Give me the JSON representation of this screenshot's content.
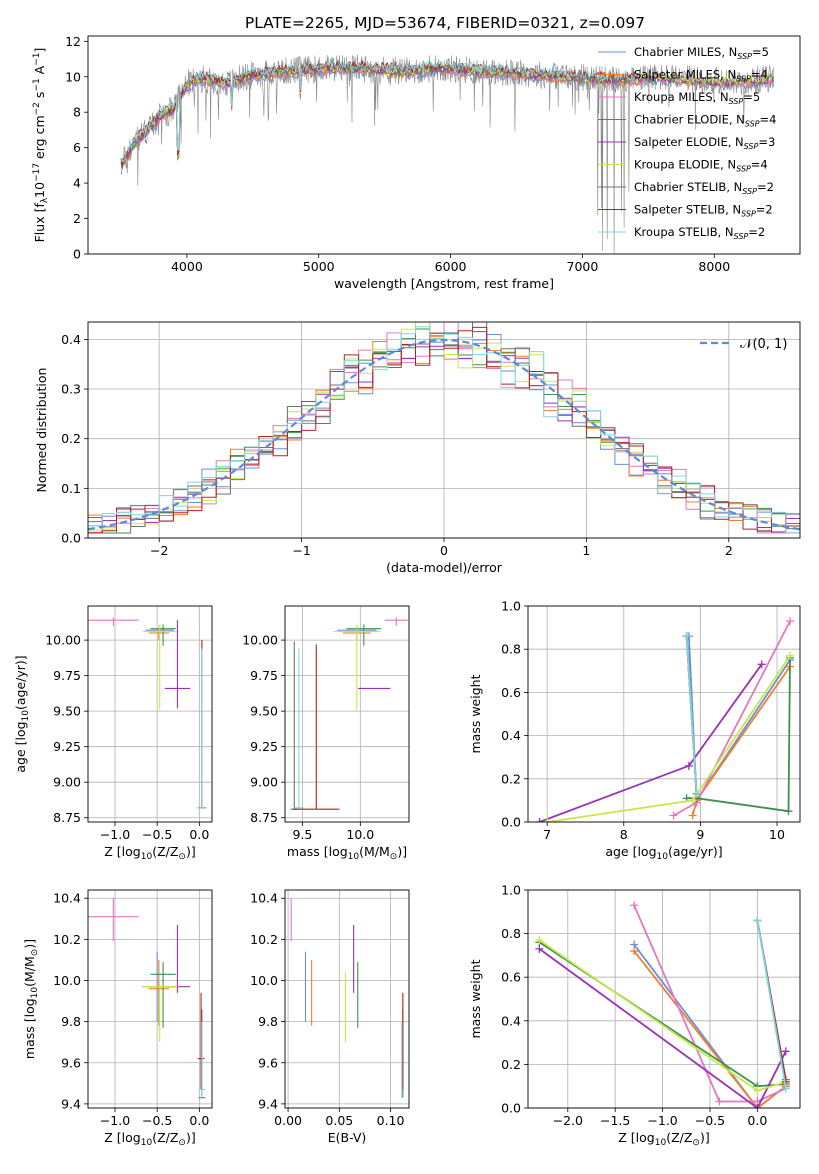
{
  "title": "PLATE=2265, MJD=53674, FIBERID=0321, z=0.097",
  "colors": {
    "chabrier_miles": "#6a8fdb",
    "salpeter_miles": "#ef7f2a",
    "kroupa_miles": "#e377c2",
    "chabrier_elodie": "#3f8f4f",
    "salpeter_elodie": "#9a32b8",
    "kroupa_elodie": "#c6e84a",
    "chabrier_stelib": "#707070",
    "salpeter_stelib": "#b22222",
    "kroupa_stelib": "#7fd6e0",
    "spectrum": "#888888",
    "normal_curve": "#5b8bdb",
    "grid": "#b0b0b0"
  },
  "chart_data": [
    {
      "id": "spectrum",
      "type": "line",
      "title": "PLATE=2265, MJD=53674, FIBERID=0321, z=0.097",
      "xlabel": "wavelength [Angstrom, rest frame]",
      "ylabel": "Flux [f_λ 10^-17 erg cm^-2 s^-1 A^-1]",
      "xlim": [
        3250,
        8650
      ],
      "ylim": [
        0,
        12.3
      ],
      "xticks": [
        "4000",
        "5000",
        "6000",
        "7000",
        "8000"
      ],
      "yticks": [
        "0",
        "2",
        "4",
        "6",
        "8",
        "10",
        "12"
      ],
      "legend_loc": "upper right",
      "observed": {
        "x": [
          3500,
          3550,
          3600,
          3700,
          3800,
          3900,
          4000,
          4100,
          4200,
          4300,
          4400,
          4500,
          4700,
          4900,
          5100,
          5300,
          5500,
          5700,
          5900,
          6100,
          6300,
          6500,
          6700,
          6900,
          7100,
          7300,
          7500,
          7700,
          7900,
          8100,
          8300,
          8450
        ],
        "y": [
          5.0,
          5.6,
          6.3,
          7.0,
          7.8,
          8.2,
          9.6,
          9.9,
          9.8,
          9.6,
          9.9,
          10.1,
          10.3,
          10.4,
          10.5,
          10.5,
          10.4,
          10.3,
          10.5,
          10.4,
          10.3,
          10.2,
          10.1,
          10.0,
          9.9,
          9.8,
          10.0,
          9.9,
          9.8,
          9.7,
          9.8,
          9.9
        ]
      },
      "series": [
        {
          "name": "Chabrier MILES, N_SSP=5",
          "color": "#6a8fdb"
        },
        {
          "name": "Salpeter MILES, N_SSP=4",
          "color": "#ef7f2a"
        },
        {
          "name": "Kroupa MILES, N_SSP=5",
          "color": "#e377c2"
        },
        {
          "name": "Chabrier ELODIE, N_SSP=4",
          "color": "#3f8f4f"
        },
        {
          "name": "Salpeter ELODIE, N_SSP=3",
          "color": "#9a32b8"
        },
        {
          "name": "Kroupa ELODIE, N_SSP=4",
          "color": "#c6e84a"
        },
        {
          "name": "Chabrier STELIB, N_SSP=2",
          "color": "#707070"
        },
        {
          "name": "Salpeter STELIB, N_SSP=2",
          "color": "#b22222"
        },
        {
          "name": "Kroupa STELIB, N_SSP=2",
          "color": "#7fd6e0"
        }
      ],
      "legend": [
        {
          "pre": "Chabrier MILES, N",
          "sub": "SSP",
          "post": "=5",
          "color": "#6a8fdb"
        },
        {
          "pre": "Salpeter MILES, N",
          "sub": "SSP",
          "post": "=4",
          "color": "#ef7f2a"
        },
        {
          "pre": "Kroupa MILES, N",
          "sub": "SSP",
          "post": "=5",
          "color": "#e377c2"
        },
        {
          "pre": "Chabrier ELODIE, N",
          "sub": "SSP",
          "post": "=4",
          "color": "#3f8f4f"
        },
        {
          "pre": "Salpeter ELODIE, N",
          "sub": "SSP",
          "post": "=3",
          "color": "#9a32b8"
        },
        {
          "pre": "Kroupa ELODIE, N",
          "sub": "SSP",
          "post": "=4",
          "color": "#c6e84a"
        },
        {
          "pre": "Chabrier STELIB, N",
          "sub": "SSP",
          "post": "=2",
          "color": "#707070"
        },
        {
          "pre": "Salpeter STELIB, N",
          "sub": "SSP",
          "post": "=2",
          "color": "#b22222"
        },
        {
          "pre": "Kroupa STELIB, N",
          "sub": "SSP",
          "post": "=2",
          "color": "#7fd6e0"
        }
      ]
    },
    {
      "id": "residuals",
      "type": "line",
      "xlabel": "(data-model)/error",
      "ylabel": "Normed distribution",
      "xlim": [
        -2.5,
        2.5
      ],
      "ylim": [
        0,
        0.435
      ],
      "xticks": [
        "−2",
        "−1",
        "0",
        "1",
        "2"
      ],
      "yticks": [
        "0.0",
        "0.1",
        "0.2",
        "0.3",
        "0.4"
      ],
      "legend": "𝒩(0, 1)",
      "legend_loc": "upper right",
      "bin_width": 0.1
    },
    {
      "id": "age_vs_Z",
      "type": "scatter",
      "xlabel_pre": "Z [log",
      "xlabel_sub": "10",
      "xlabel_post": "(Z/Z",
      "xlabel_sun": "⊙",
      "xlabel_end": ")]",
      "ylabel_pre": "age  [log",
      "ylabel_sub": "10",
      "ylabel_post": "(age/yr)]",
      "xlim": [
        -1.32,
        0.15
      ],
      "ylim": [
        8.72,
        10.24
      ],
      "xticks": [
        "−1.0",
        "−0.5",
        "0.0"
      ],
      "yticks": [
        "8.75",
        "9.00",
        "9.25",
        "9.50",
        "9.75",
        "10.00"
      ],
      "points": [
        {
          "x": -0.47,
          "y": 10.07,
          "xerr": 0.17,
          "yerr": [
            0.03,
            0.03
          ]
        },
        {
          "x": -0.48,
          "y": 10.05,
          "xerr": 0.12,
          "yerr": [
            0.05,
            0.03
          ]
        },
        {
          "x": -1.02,
          "y": 10.14,
          "xerr": 0.3,
          "yerr": [
            0.04,
            0.02
          ]
        },
        {
          "x": -0.43,
          "y": 10.08,
          "xerr": 0.15,
          "yerr": [
            0.12,
            0.03
          ]
        },
        {
          "x": -0.26,
          "y": 9.66,
          "xerr": 0.15,
          "yerr": [
            0.14,
            0.48
          ]
        },
        {
          "x": -0.47,
          "y": 10.06,
          "xerr": 0.2,
          "yerr": [
            0.55,
            0.05
          ]
        },
        {
          "x": 0.03,
          "y": 8.82,
          "xerr": 0.04,
          "yerr": [
            0.0,
            0.05
          ]
        },
        {
          "x": 0.03,
          "y": 8.82,
          "xerr": 0.05,
          "yerr": [
            0.0,
            1.18
          ]
        },
        {
          "x": 0.03,
          "y": 8.82,
          "xerr": 0.05,
          "yerr": [
            0.0,
            1.12
          ]
        }
      ]
    },
    {
      "id": "age_vs_mass",
      "type": "scatter",
      "xlabel_pre": "mass [log",
      "xlabel_sub": "10",
      "xlabel_post": "(M/M",
      "xlabel_sun": "⊙",
      "xlabel_end": ")]",
      "xlim": [
        9.35,
        10.42
      ],
      "ylim": [
        8.72,
        10.24
      ],
      "xticks": [
        "9.5",
        "10.0"
      ],
      "yticks": [
        "8.75",
        "9.00",
        "9.25",
        "9.50",
        "9.75",
        "10.00"
      ],
      "points": [
        {
          "x": 9.97,
          "y": 10.07,
          "xerr": 0.17,
          "yerr": [
            0.03,
            0.03
          ]
        },
        {
          "x": 9.97,
          "y": 10.05,
          "xerr": 0.12,
          "yerr": [
            0.05,
            0.03
          ]
        },
        {
          "x": 10.31,
          "y": 10.14,
          "xerr": 0.1,
          "yerr": [
            0.04,
            0.02
          ]
        },
        {
          "x": 10.03,
          "y": 10.08,
          "xerr": 0.15,
          "yerr": [
            0.12,
            0.03
          ]
        },
        {
          "x": 10.12,
          "y": 9.66,
          "xerr": 0.14,
          "yerr": [
            0.0,
            0.0
          ]
        },
        {
          "x": 9.97,
          "y": 10.06,
          "xerr": 0.2,
          "yerr": [
            0.55,
            0.05
          ]
        },
        {
          "x": 9.43,
          "y": 8.81,
          "xerr": 0.03,
          "yerr": [
            0.0,
            1.18
          ]
        },
        {
          "x": 9.62,
          "y": 8.81,
          "xerr": 0.2,
          "yerr": [
            0.0,
            1.16
          ]
        },
        {
          "x": 9.47,
          "y": 8.82,
          "xerr": 0.04,
          "yerr": [
            0.0,
            1.12
          ]
        }
      ]
    },
    {
      "id": "mass_vs_Z",
      "type": "scatter",
      "xlabel_pre": "Z [log",
      "xlabel_sub": "10",
      "xlabel_post": "(Z/Z",
      "xlabel_sun": "⊙",
      "xlabel_end": ")]",
      "ylabel_pre": "mass [log",
      "ylabel_sub": "10",
      "ylabel_post": "(M/M",
      "ylabel_sun": "⊙",
      "ylabel_end": ")]",
      "xlim": [
        -1.32,
        0.15
      ],
      "ylim": [
        9.38,
        10.44
      ],
      "xticks": [
        "−1.0",
        "−0.5",
        "0.0"
      ],
      "yticks": [
        "9.4",
        "9.6",
        "9.8",
        "10.0",
        "10.2",
        "10.4"
      ],
      "points": [
        {
          "x": -0.5,
          "y": 9.97,
          "xerr": 0.17,
          "yerr": [
            0.17,
            0.17
          ]
        },
        {
          "x": -0.48,
          "y": 9.96,
          "xerr": 0.12,
          "yerr": [
            0.18,
            0.14
          ]
        },
        {
          "x": -1.02,
          "y": 10.31,
          "xerr": 0.3,
          "yerr": [
            0.12,
            0.09
          ]
        },
        {
          "x": -0.43,
          "y": 10.03,
          "xerr": 0.15,
          "yerr": [
            0.26,
            0.06
          ]
        },
        {
          "x": -0.26,
          "y": 9.97,
          "xerr": 0.15,
          "yerr": [
            0.03,
            0.3
          ]
        },
        {
          "x": -0.47,
          "y": 9.97,
          "xerr": 0.21,
          "yerr": [
            0.27,
            0.01
          ]
        },
        {
          "x": 0.03,
          "y": 9.43,
          "xerr": 0.04,
          "yerr": [
            0.0,
            0.43
          ]
        },
        {
          "x": 0.02,
          "y": 9.62,
          "xerr": 0.04,
          "yerr": [
            0.15,
            0.32
          ]
        },
        {
          "x": 0.03,
          "y": 9.47,
          "xerr": 0.04,
          "yerr": [
            0.04,
            0.33
          ]
        }
      ]
    },
    {
      "id": "mass_vs_EBV",
      "type": "scatter",
      "xlabel": "E(B-V)",
      "xlim": [
        -0.003,
        0.118
      ],
      "ylim": [
        9.38,
        10.44
      ],
      "xticks": [
        "0.00",
        "0.05",
        "0.10"
      ],
      "yticks": [
        "9.4",
        "9.6",
        "9.8",
        "10.0",
        "10.2",
        "10.4"
      ],
      "points": [
        {
          "x": 0.017,
          "y": 9.97,
          "xerr": 0,
          "yerr": [
            0.17,
            0.17
          ]
        },
        {
          "x": 0.023,
          "y": 9.96,
          "xerr": 0,
          "yerr": [
            0.18,
            0.14
          ]
        },
        {
          "x": 0.003,
          "y": 10.31,
          "xerr": 0,
          "yerr": [
            0.12,
            0.09
          ]
        },
        {
          "x": 0.068,
          "y": 10.03,
          "xerr": 0,
          "yerr": [
            0.26,
            0.06
          ]
        },
        {
          "x": 0.064,
          "y": 9.97,
          "xerr": 0,
          "yerr": [
            0.03,
            0.3
          ]
        },
        {
          "x": 0.056,
          "y": 9.97,
          "xerr": 0,
          "yerr": [
            0.27,
            0.07
          ]
        },
        {
          "x": 0.112,
          "y": 9.43,
          "xerr": 0,
          "yerr": [
            0.0,
            0.43
          ]
        },
        {
          "x": 0.112,
          "y": 9.62,
          "xerr": 0,
          "yerr": [
            0.15,
            0.32
          ]
        },
        {
          "x": 0.111,
          "y": 9.47,
          "xerr": 0,
          "yerr": [
            0.04,
            0.33
          ]
        }
      ]
    },
    {
      "id": "weight_vs_age",
      "type": "line",
      "xlabel_pre": "age  [log",
      "xlabel_sub": "10",
      "xlabel_post": "(age/yr)]",
      "ylabel": "mass weight",
      "xlim": [
        6.75,
        10.3
      ],
      "ylim": [
        0,
        1.0
      ],
      "xticks": [
        "7",
        "8",
        "9",
        "10"
      ],
      "yticks": [
        "0.0",
        "0.2",
        "0.4",
        "0.6",
        "0.8",
        "1.0"
      ],
      "series": [
        {
          "name": "Chabrier MILES",
          "x": [
            8.85,
            8.95,
            10.17
          ],
          "y": [
            0.86,
            0.1,
            0.75
          ]
        },
        {
          "name": "Salpeter MILES",
          "x": [
            8.9,
            8.95,
            10.17
          ],
          "y": [
            0.03,
            0.1,
            0.72
          ]
        },
        {
          "name": "Kroupa MILES",
          "x": [
            8.65,
            8.95,
            10.17
          ],
          "y": [
            0.03,
            0.09,
            0.93
          ]
        },
        {
          "name": "Chabrier ELODIE",
          "x": [
            8.82,
            8.95,
            10.15,
            10.17
          ],
          "y": [
            0.11,
            0.11,
            0.05,
            0.76
          ]
        },
        {
          "name": "Salpeter ELODIE",
          "x": [
            6.9,
            8.85,
            9.8
          ],
          "y": [
            0.0,
            0.26,
            0.73
          ]
        },
        {
          "name": "Kroupa ELODIE",
          "x": [
            7.0,
            8.9,
            10.17
          ],
          "y": [
            0.0,
            0.1,
            0.77
          ]
        },
        {
          "name": "Chabrier STELIB",
          "x": [
            8.82,
            8.95
          ],
          "y": [
            0.86,
            0.13
          ]
        },
        {
          "name": "Salpeter STELIB",
          "x": [
            8.82,
            8.95
          ],
          "y": [
            0.86,
            0.13
          ]
        },
        {
          "name": "Kroupa STELIB",
          "x": [
            8.82,
            8.95
          ],
          "y": [
            0.86,
            0.13
          ]
        }
      ]
    },
    {
      "id": "weight_vs_Z",
      "type": "line",
      "xlabel_pre": "Z [log",
      "xlabel_sub": "10",
      "xlabel_post": "(Z/Z",
      "xlabel_sun": "⊙",
      "xlabel_end": ")]",
      "ylabel": "mass weight",
      "xlim": [
        -2.42,
        0.45
      ],
      "ylim": [
        0,
        1.0
      ],
      "xticks": [
        "−2.0",
        "−1.5",
        "−1.0",
        "−0.5",
        "0.0"
      ],
      "yticks": [
        "0.0",
        "0.2",
        "0.4",
        "0.6",
        "0.8",
        "1.0"
      ],
      "series": [
        {
          "name": "Chabrier MILES",
          "x": [
            -1.3,
            0.0,
            0.3
          ],
          "y": [
            0.75,
            0.0,
            0.1
          ]
        },
        {
          "name": "Salpeter MILES",
          "x": [
            -1.3,
            0.0,
            0.3
          ],
          "y": [
            0.72,
            0.0,
            0.1
          ]
        },
        {
          "name": "Kroupa MILES",
          "x": [
            -1.3,
            -0.4,
            0.0,
            0.3
          ],
          "y": [
            0.93,
            0.03,
            0.03,
            0.09
          ]
        },
        {
          "name": "Chabrier ELODIE",
          "x": [
            -2.3,
            0.0,
            0.3
          ],
          "y": [
            0.76,
            0.1,
            0.11
          ]
        },
        {
          "name": "Salpeter ELODIE",
          "x": [
            -2.3,
            0.0,
            0.3
          ],
          "y": [
            0.73,
            0.0,
            0.26
          ]
        },
        {
          "name": "Kroupa ELODIE",
          "x": [
            -2.3,
            0.0,
            0.3
          ],
          "y": [
            0.77,
            0.08,
            0.12
          ]
        },
        {
          "name": "Chabrier STELIB",
          "x": [
            0.0,
            0.3
          ],
          "y": [
            0.86,
            0.13
          ]
        },
        {
          "name": "Salpeter STELIB",
          "x": [
            0.0,
            0.3
          ],
          "y": [
            0.86,
            0.12
          ]
        },
        {
          "name": "Kroupa STELIB",
          "x": [
            0.0,
            0.3
          ],
          "y": [
            0.86,
            0.09
          ]
        }
      ]
    }
  ]
}
